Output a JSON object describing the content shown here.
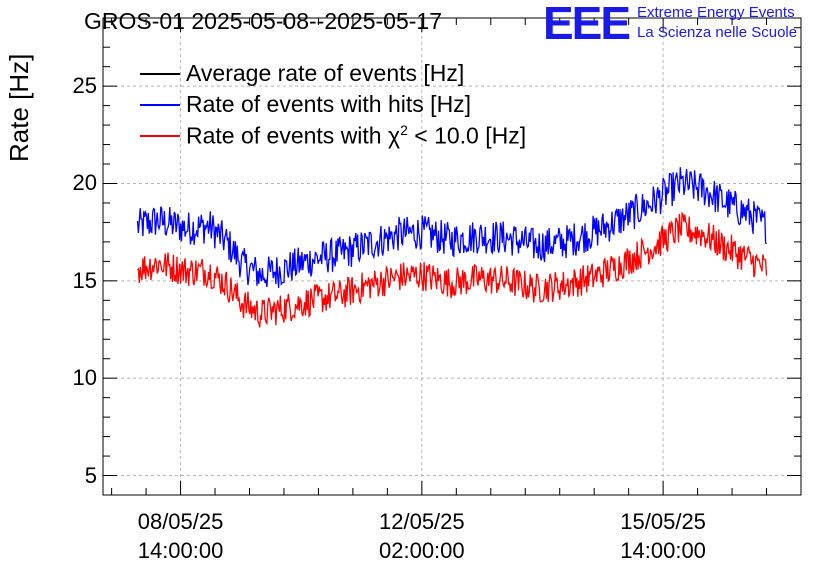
{
  "chart_data": {
    "type": "line",
    "title": "GROS-01 2025-05-08--2025-05-17",
    "ylabel": "Rate [Hz]",
    "xlabel": "",
    "ylim": [
      4,
      28.5
    ],
    "yticks": [
      5,
      10,
      15,
      20,
      25
    ],
    "xlim": [
      "2025-05-07T11:00:00",
      "2025-05-17T14:00:00"
    ],
    "xticks": [
      {
        "time": "2025-05-08T14:00:00",
        "date": "08/05/25",
        "clock": "14:00:00"
      },
      {
        "time": "2025-05-12T02:00:00",
        "date": "12/05/25",
        "clock": "02:00:00"
      },
      {
        "time": "2025-05-15T14:00:00",
        "date": "15/05/25",
        "clock": "14:00:00"
      }
    ],
    "grid": true,
    "legend_position": "top-left",
    "legend": [
      {
        "label": "Average rate of events [Hz]",
        "color": "#000000"
      },
      {
        "label": "Rate of events with hits [Hz]",
        "color": "#0000ff"
      },
      {
        "label_prefix": "Rate of events with ",
        "label_symbol": "χ",
        "label_sup": "2",
        "label_suffix": " < 10.0 [Hz]",
        "color": "#ff0000"
      }
    ],
    "series": [
      {
        "name": "Rate of events with hits [Hz]",
        "color": "#0000ff",
        "noise_band": 0.9,
        "points": [
          {
            "x": "2025-05-07T23:00:00",
            "y": 17.8
          },
          {
            "x": "2025-05-08T06:00:00",
            "y": 18.1
          },
          {
            "x": "2025-05-08T16:00:00",
            "y": 17.7
          },
          {
            "x": "2025-05-09T00:00:00",
            "y": 17.8
          },
          {
            "x": "2025-05-09T06:00:00",
            "y": 17.0
          },
          {
            "x": "2025-05-09T12:00:00",
            "y": 15.8
          },
          {
            "x": "2025-05-09T18:00:00",
            "y": 15.3
          },
          {
            "x": "2025-05-10T02:00:00",
            "y": 15.6
          },
          {
            "x": "2025-05-10T12:00:00",
            "y": 16.1
          },
          {
            "x": "2025-05-10T22:00:00",
            "y": 16.4
          },
          {
            "x": "2025-05-11T08:00:00",
            "y": 16.9
          },
          {
            "x": "2025-05-11T18:00:00",
            "y": 17.4
          },
          {
            "x": "2025-05-12T02:00:00",
            "y": 17.5
          },
          {
            "x": "2025-05-12T12:00:00",
            "y": 17.1
          },
          {
            "x": "2025-05-12T22:00:00",
            "y": 17.3
          },
          {
            "x": "2025-05-13T08:00:00",
            "y": 17.2
          },
          {
            "x": "2025-05-13T18:00:00",
            "y": 16.8
          },
          {
            "x": "2025-05-14T04:00:00",
            "y": 17.0
          },
          {
            "x": "2025-05-14T14:00:00",
            "y": 17.5
          },
          {
            "x": "2025-05-15T00:00:00",
            "y": 18.2
          },
          {
            "x": "2025-05-15T10:00:00",
            "y": 19.0
          },
          {
            "x": "2025-05-15T20:00:00",
            "y": 20.0
          },
          {
            "x": "2025-05-16T04:00:00",
            "y": 19.7
          },
          {
            "x": "2025-05-16T12:00:00",
            "y": 19.0
          },
          {
            "x": "2025-05-16T20:00:00",
            "y": 18.4
          },
          {
            "x": "2025-05-17T02:00:00",
            "y": 17.8
          }
        ]
      },
      {
        "name": "Rate of events with χ2 < 10.0 [Hz]",
        "color": "#ff0000",
        "noise_band": 0.8,
        "points": [
          {
            "x": "2025-05-07T23:00:00",
            "y": 15.6
          },
          {
            "x": "2025-05-08T06:00:00",
            "y": 15.9
          },
          {
            "x": "2025-05-08T16:00:00",
            "y": 15.5
          },
          {
            "x": "2025-05-09T00:00:00",
            "y": 15.5
          },
          {
            "x": "2025-05-09T06:00:00",
            "y": 14.8
          },
          {
            "x": "2025-05-09T12:00:00",
            "y": 13.8
          },
          {
            "x": "2025-05-09T18:00:00",
            "y": 13.3
          },
          {
            "x": "2025-05-10T02:00:00",
            "y": 13.6
          },
          {
            "x": "2025-05-10T12:00:00",
            "y": 14.0
          },
          {
            "x": "2025-05-10T22:00:00",
            "y": 14.3
          },
          {
            "x": "2025-05-11T08:00:00",
            "y": 14.8
          },
          {
            "x": "2025-05-11T18:00:00",
            "y": 15.2
          },
          {
            "x": "2025-05-12T02:00:00",
            "y": 15.3
          },
          {
            "x": "2025-05-12T12:00:00",
            "y": 14.9
          },
          {
            "x": "2025-05-12T22:00:00",
            "y": 15.1
          },
          {
            "x": "2025-05-13T08:00:00",
            "y": 15.0
          },
          {
            "x": "2025-05-13T18:00:00",
            "y": 14.6
          },
          {
            "x": "2025-05-14T04:00:00",
            "y": 14.8
          },
          {
            "x": "2025-05-14T14:00:00",
            "y": 15.2
          },
          {
            "x": "2025-05-15T00:00:00",
            "y": 15.9
          },
          {
            "x": "2025-05-15T10:00:00",
            "y": 16.7
          },
          {
            "x": "2025-05-15T20:00:00",
            "y": 17.7
          },
          {
            "x": "2025-05-16T04:00:00",
            "y": 17.4
          },
          {
            "x": "2025-05-16T12:00:00",
            "y": 16.7
          },
          {
            "x": "2025-05-16T20:00:00",
            "y": 16.1
          },
          {
            "x": "2025-05-17T02:00:00",
            "y": 15.6
          }
        ]
      }
    ]
  },
  "branding": {
    "logo": "EEE",
    "line1": "Extreme Energy Events",
    "line2": "La Scienza nelle Scuole",
    "color": "#1a1ae6"
  }
}
